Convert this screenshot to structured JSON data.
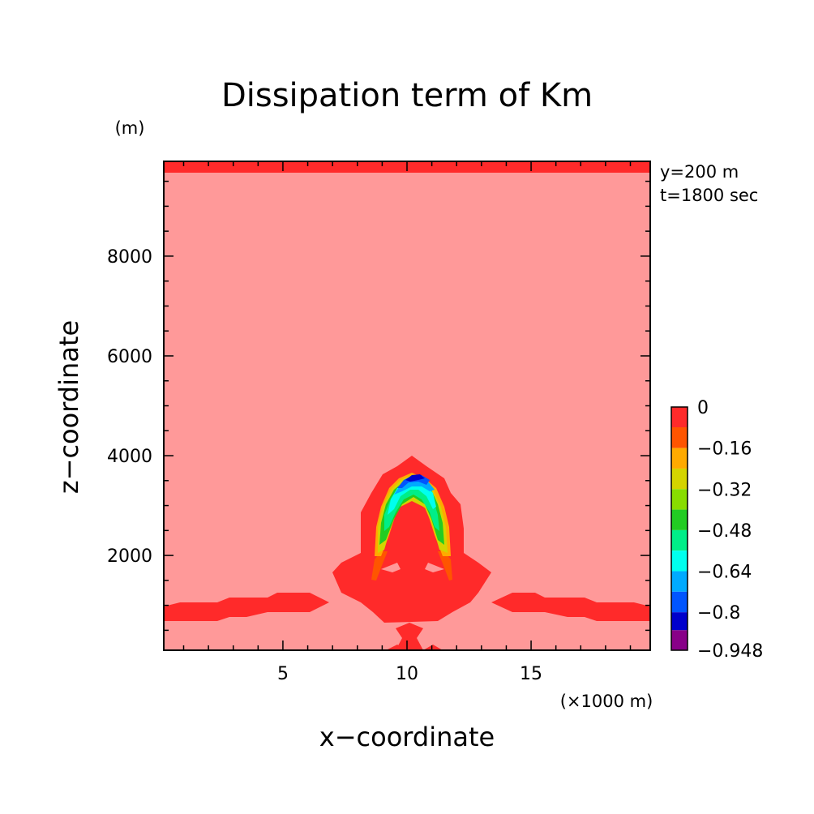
{
  "chart_data": {
    "type": "heatmap",
    "title": "Dissipation term of Km",
    "xlabel": "x−coordinate",
    "ylabel": "z−coordinate",
    "x_unit": "(×1000 m)",
    "y_unit": "(m)",
    "annotations": [
      "y=200 m",
      "t=1800 sec"
    ],
    "xlim": [
      0.2,
      19.8
    ],
    "ylim": [
      100,
      9900
    ],
    "x_ticks": [
      {
        "value": 5,
        "label": "5"
      },
      {
        "value": 10,
        "label": "10"
      },
      {
        "value": 15,
        "label": "15"
      }
    ],
    "y_ticks": [
      {
        "value": 2000,
        "label": "2000"
      },
      {
        "value": 4000,
        "label": "4000"
      },
      {
        "value": 6000,
        "label": "6000"
      },
      {
        "value": 8000,
        "label": "8000"
      }
    ],
    "colorbar": {
      "levels": [
        0,
        -0.079,
        -0.16,
        -0.24,
        -0.32,
        -0.4,
        -0.48,
        -0.56,
        -0.64,
        -0.72,
        -0.8,
        -0.87,
        -0.948
      ],
      "labels": [
        {
          "value": 0,
          "label": "0"
        },
        {
          "value": -0.16,
          "label": "−0.16"
        },
        {
          "value": -0.32,
          "label": "−0.32"
        },
        {
          "value": -0.48,
          "label": "−0.48"
        },
        {
          "value": -0.64,
          "label": "−0.64"
        },
        {
          "value": -0.8,
          "label": "−0.8"
        },
        {
          "value": -0.948,
          "label": "−0.948"
        }
      ],
      "colors": [
        "#ff2a2a",
        "#ff5500",
        "#ffaa00",
        "#d4d400",
        "#88dd00",
        "#22cc22",
        "#00ee88",
        "#00ffee",
        "#00aaff",
        "#0055ff",
        "#0000cc",
        "#880088"
      ]
    },
    "background_color": "#ff9999",
    "field": {
      "description_level": "contour regions",
      "regions": [
        {
          "level": "near-zero",
          "color": "#ff2a2a",
          "where": "top boundary, low-level horizontal bands, plume envelope"
        },
        {
          "level": "minimum",
          "value": -0.948,
          "where": "plume core near x=10, z≈3600"
        }
      ]
    }
  }
}
